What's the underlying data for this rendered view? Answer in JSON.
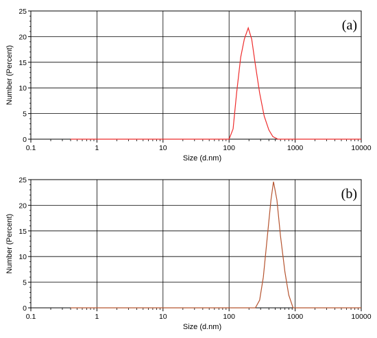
{
  "chart_data": [
    {
      "type": "line",
      "panel_label": "(a)",
      "xlabel": "Size (d.nm)",
      "ylabel": "Number (Percent)",
      "xscale": "log",
      "xlim": [
        0.1,
        10000
      ],
      "ylim": [
        0,
        25
      ],
      "x_ticks": [
        "0.1",
        "1",
        "10",
        "100",
        "1000",
        "10000"
      ],
      "y_ticks": [
        "0",
        "5",
        "10",
        "15",
        "20",
        "25"
      ],
      "grid": true,
      "series": [
        {
          "color": "#ee2b2b",
          "x": [
            0.4,
            100,
            115,
            130,
            150,
            170,
            195,
            220,
            250,
            290,
            340,
            400,
            460,
            550,
            10000
          ],
          "y": [
            0,
            0,
            2,
            9,
            16,
            19.5,
            21.7,
            19.5,
            14.5,
            9,
            4.5,
            1.8,
            0.5,
            0,
            0
          ]
        }
      ]
    },
    {
      "type": "line",
      "panel_label": "(b)",
      "xlabel": "Size (d.nm)",
      "ylabel": "Number (Percent)",
      "xscale": "log",
      "xlim": [
        0.1,
        10000
      ],
      "ylim": [
        0,
        25
      ],
      "x_ticks": [
        "0.1",
        "1",
        "10",
        "100",
        "1000",
        "10000"
      ],
      "y_ticks": [
        "0",
        "5",
        "10",
        "15",
        "20",
        "25"
      ],
      "grid": true,
      "series": [
        {
          "color": "#b5532e",
          "x": [
            0.4,
            250,
            290,
            330,
            380,
            430,
            470,
            530,
            600,
            700,
            800,
            930,
            10000
          ],
          "y": [
            0,
            0,
            1.5,
            6,
            14,
            21,
            24.6,
            21,
            14,
            7,
            2.5,
            0,
            0
          ]
        }
      ]
    }
  ]
}
